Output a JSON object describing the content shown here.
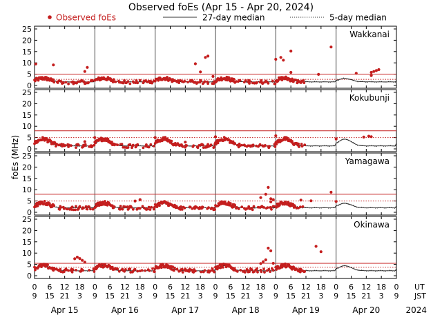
{
  "chart_data": {
    "type": "scatter",
    "title": "Observed foEs (Apr 15 - Apr 20, 2024)",
    "ylabel": "foEs (MHz)",
    "ylim": [
      0,
      25
    ],
    "yticks": [
      0,
      5,
      10,
      15,
      20,
      25
    ],
    "legend": [
      {
        "key": "observed",
        "label": "Observed foEs",
        "style": "red dot"
      },
      {
        "key": "median27",
        "label": "27-day median",
        "style": "solid line"
      },
      {
        "key": "median5",
        "label": "5-day median",
        "style": "dotted line"
      }
    ],
    "x_units": {
      "ut": "UT",
      "jst": "JST"
    },
    "x_total_hours": 144,
    "x_tick_hours": [
      0,
      6,
      12,
      18,
      24,
      30,
      36,
      42,
      48,
      54,
      60,
      66,
      72,
      78,
      84,
      90,
      96,
      102,
      108,
      114,
      120,
      126,
      132,
      138,
      144
    ],
    "ut_tick_labels": [
      "0",
      "6",
      "12",
      "18",
      "0",
      "6",
      "12",
      "18",
      "0",
      "6",
      "12",
      "18",
      "0",
      "6",
      "12",
      "18",
      "0",
      "6",
      "12",
      "18",
      "0",
      "6",
      "12",
      "18",
      "0"
    ],
    "jst_tick_labels": [
      "9",
      "15",
      "21",
      "3",
      "9",
      "15",
      "21",
      "3",
      "9",
      "15",
      "21",
      "3",
      "9",
      "15",
      "21",
      "3",
      "9",
      "15",
      "21",
      "3",
      "9",
      "15",
      "21",
      "3",
      "9"
    ],
    "days": [
      "Apr 15",
      "Apr 16",
      "Apr 17",
      "Apr 18",
      "Apr 19",
      "Apr 20"
    ],
    "year": "2024",
    "day_markers_hours": [
      24,
      48,
      72,
      96,
      120
    ],
    "observed_end_hour": 108,
    "stations": [
      {
        "name": "Wakkanai",
        "threshold_upper": 5,
        "threshold_lower": 2.7,
        "median": {
          "day": 3.1,
          "night": 1.6
        },
        "observed_level": {
          "day": 3.2,
          "night": 1.5
        },
        "outliers": [
          [
            0.5,
            9.5
          ],
          [
            7.5,
            9.1
          ],
          [
            21,
            8.0
          ],
          [
            20,
            6.2
          ],
          [
            64,
            9.6
          ],
          [
            66,
            6.0
          ],
          [
            68,
            12.4
          ],
          [
            69,
            13.0
          ],
          [
            71,
            4.0
          ],
          [
            96,
            11.6
          ],
          [
            98,
            12.4
          ],
          [
            99,
            11.2
          ],
          [
            102,
            15.2
          ],
          [
            118,
            17.0
          ],
          [
            102,
            5.8
          ],
          [
            113,
            4.9
          ],
          [
            128,
            5.4
          ],
          [
            134,
            5.8
          ],
          [
            135,
            6.2
          ],
          [
            136,
            6.6
          ],
          [
            137,
            7.0
          ],
          [
            134,
            4.4
          ]
        ]
      },
      {
        "name": "Kokubunji",
        "threshold_upper": 8,
        "threshold_lower": 5,
        "median": {
          "day": 4.3,
          "night": 1.3
        },
        "observed_level": {
          "day": 4.4,
          "night": 1.3
        },
        "outliers": [
          [
            8,
            2.8
          ],
          [
            20,
            3.2
          ],
          [
            24,
            5.0
          ],
          [
            48,
            5.0
          ],
          [
            60,
            3.0
          ],
          [
            72,
            5.4
          ],
          [
            96,
            5.8
          ],
          [
            120,
            4.4
          ],
          [
            131,
            5.2
          ],
          [
            133,
            5.6
          ],
          [
            134,
            5.4
          ]
        ]
      },
      {
        "name": "Yamagawa",
        "threshold_upper": 8,
        "threshold_lower": 5,
        "median": {
          "day": 4.0,
          "night": 2.0
        },
        "observed_level": {
          "day": 4.2,
          "night": 1.9
        },
        "outliers": [
          [
            42,
            5.6
          ],
          [
            40,
            5.0
          ],
          [
            93,
            11.0
          ],
          [
            92,
            8.0
          ],
          [
            94,
            6.0
          ],
          [
            95,
            5.6
          ],
          [
            94,
            4.6
          ],
          [
            118,
            8.9
          ],
          [
            110,
            5.1
          ],
          [
            106,
            5.4
          ],
          [
            120,
            4.8
          ],
          [
            90,
            6.5
          ]
        ]
      },
      {
        "name": "Okinawa",
        "threshold_upper": 5.5,
        "threshold_lower": 3.8,
        "median": {
          "day": 4.4,
          "night": 2.2
        },
        "observed_level": {
          "day": 4.5,
          "night": 2.3
        },
        "outliers": [
          [
            17,
            8.2
          ],
          [
            16,
            7.5
          ],
          [
            18,
            7.6
          ],
          [
            19,
            6.8
          ],
          [
            20,
            6.0
          ],
          [
            93,
            12.2
          ],
          [
            94,
            11.0
          ],
          [
            92,
            7.0
          ],
          [
            91,
            6.2
          ],
          [
            112,
            13.0
          ],
          [
            114,
            10.6
          ],
          [
            95,
            5.5
          ],
          [
            90,
            5.4
          ]
        ]
      }
    ]
  }
}
